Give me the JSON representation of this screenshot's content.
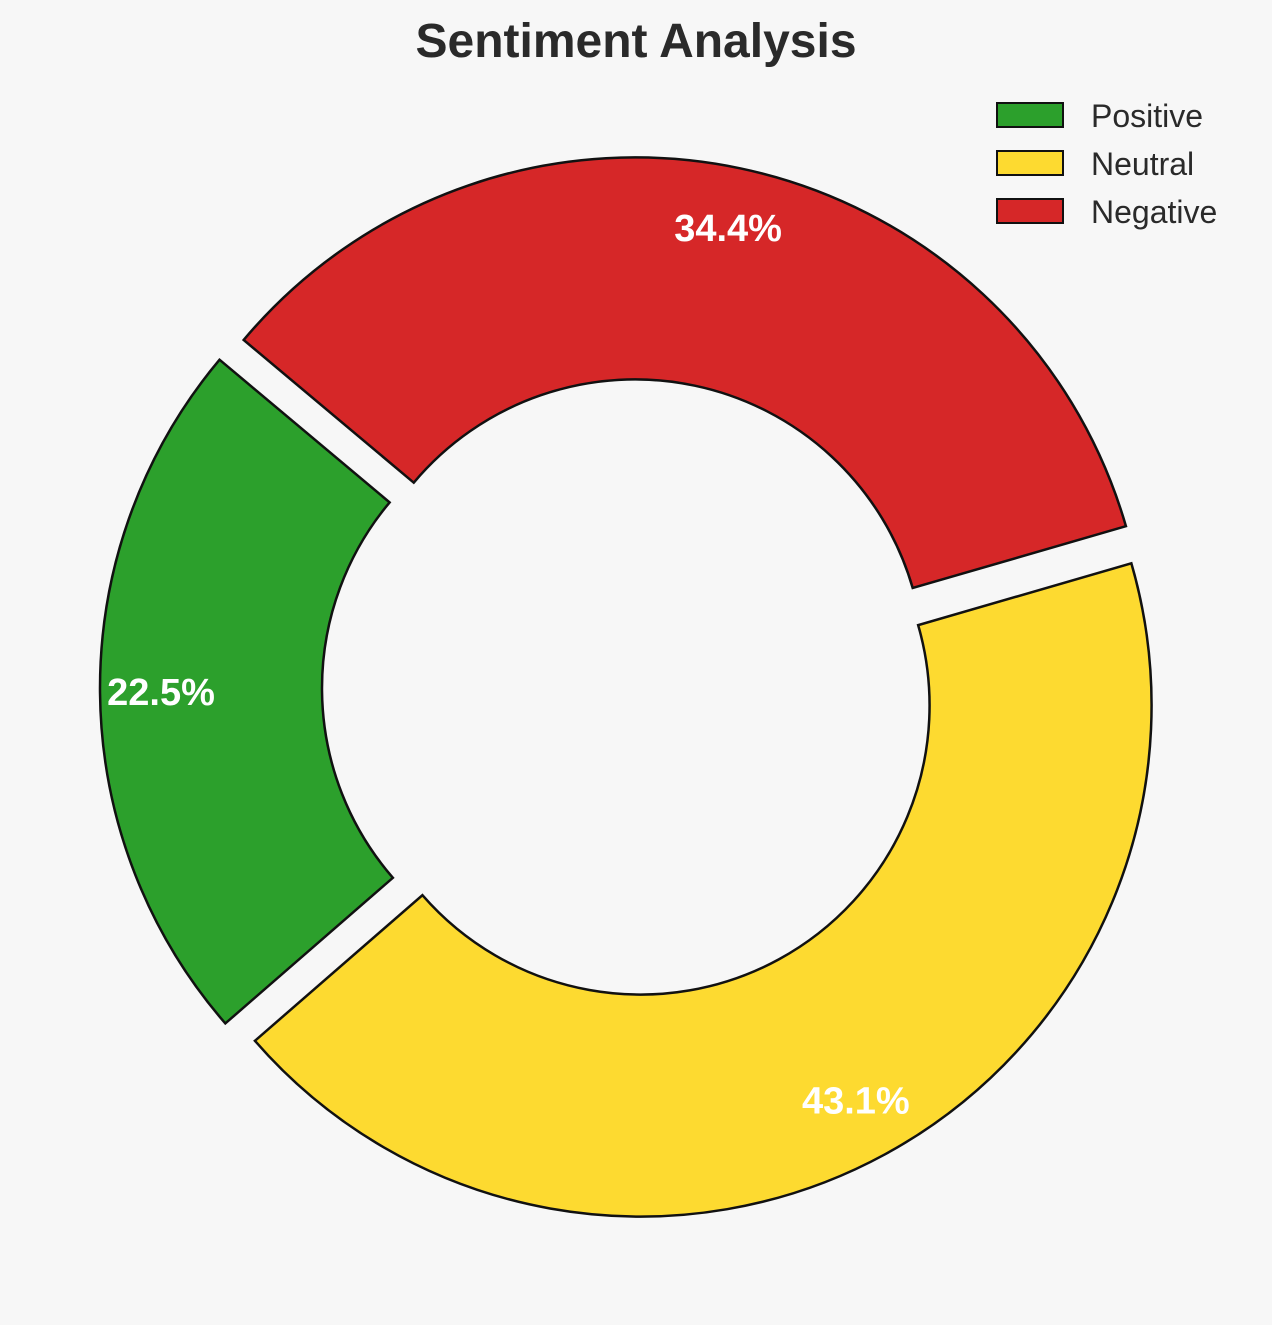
{
  "chart_data": {
    "type": "pie",
    "variant": "donut",
    "title": "Sentiment Analysis",
    "categories": [
      "Positive",
      "Neutral",
      "Negative"
    ],
    "values": [
      22.5,
      43.1,
      34.4
    ],
    "labels": [
      "22.5%",
      "43.1%",
      "34.4%"
    ],
    "colors": [
      "#2ca02c",
      "#fdda30",
      "#d62728"
    ],
    "legend": {
      "position": "top-right",
      "entries": [
        "Positive",
        "Neutral",
        "Negative"
      ]
    }
  }
}
